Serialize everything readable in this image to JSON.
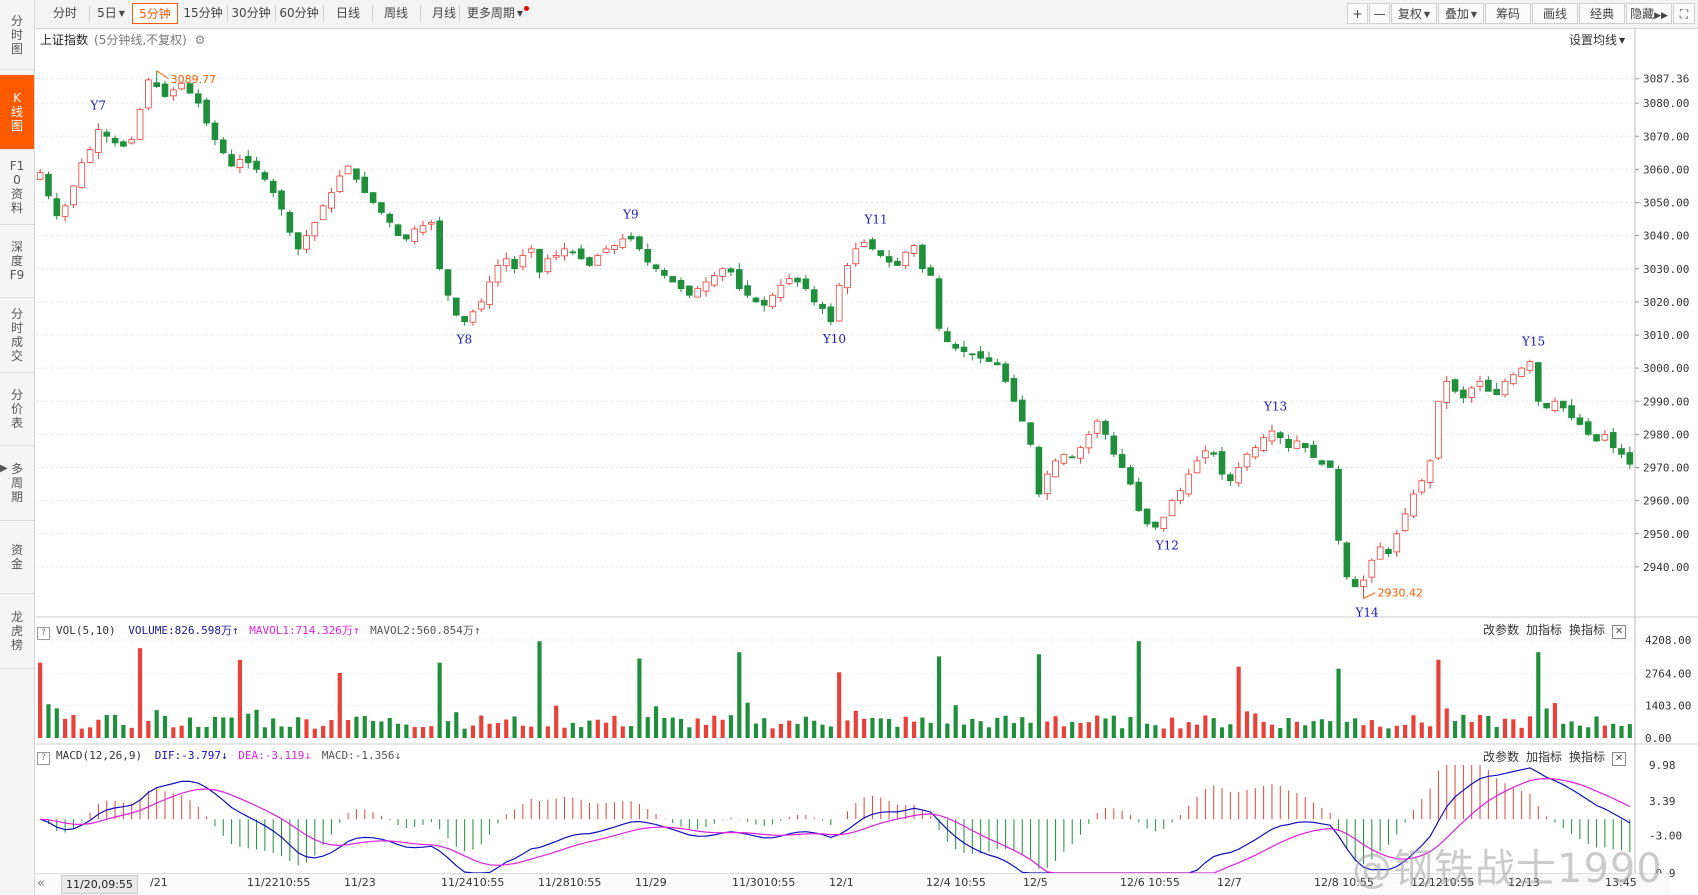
{
  "sidebar": {
    "items": [
      {
        "label": "分时图",
        "active": false
      },
      {
        "label": "K线图",
        "active": true
      },
      {
        "label": "F10资料",
        "active": false
      },
      {
        "label": "深度F9",
        "active": false
      },
      {
        "label": "分时成交",
        "active": false
      },
      {
        "label": "分价表",
        "active": false
      },
      {
        "label": "多周期",
        "active": false
      },
      {
        "label": "资金",
        "active": false
      },
      {
        "label": "龙虎榜",
        "active": false
      }
    ]
  },
  "toolbar": {
    "periods": [
      "分时",
      "5日",
      "5分钟",
      "15分钟",
      "30分钟",
      "60分钟",
      "日线",
      "周线",
      "月线",
      "更多周期"
    ],
    "active_period": "5分钟",
    "right": {
      "plus": "+",
      "minus": "—",
      "fuquan": "复权",
      "diejia": "叠加",
      "chouma": "筹码",
      "huaxian": "画线",
      "jingdian": "经典",
      "hide": "隐藏",
      "fullscreen": "⛶"
    }
  },
  "chart_header": {
    "name": "上证指数",
    "sub": "(5分钟线,不复权)",
    "set_ma": "设置均线"
  },
  "price_axis": [
    "3087.36",
    "3080.00",
    "3070.00",
    "3060.00",
    "3050.00",
    "3040.00",
    "3030.00",
    "3020.00",
    "3010.00",
    "3000.00",
    "2990.00",
    "2980.00",
    "2970.00",
    "2960.00",
    "2950.00",
    "2940.00"
  ],
  "vol_axis": [
    "4208.00",
    "2764.00",
    "1403.00",
    "0.00"
  ],
  "macd_axis": [
    "9.98",
    "3.39",
    "-3.00",
    "-9.9"
  ],
  "vol_panel": {
    "name": "VOL(5,10)",
    "volume_label": "VOLUME:826.598万",
    "mavol1_label": "MAVOL1:714.326万",
    "mavol2_label": "MAVOL2:560.854万"
  },
  "macd_panel": {
    "name": "MACD(12,26,9)",
    "dif_label": "DIF:-3.797",
    "dea_label": "DEA:-3.119",
    "macd_label": "MACD:-1.356"
  },
  "panel_actions": {
    "change": "改参数",
    "add": "加指标",
    "switch": "换指标",
    "close": "✕"
  },
  "annotations": {
    "high_label": "3089.77",
    "low_label": "2930.42",
    "marks": [
      "Y7",
      "Y8",
      "Y9",
      "Y10",
      "Y11",
      "Y12",
      "Y13",
      "Y14",
      "Y15"
    ]
  },
  "x_axis": {
    "nav": "«",
    "current": "11/20,09:55",
    "labels": [
      "/21",
      "11/2210:55",
      "11/23",
      "11/2410:55",
      "11/2810:55",
      "11/29",
      "11/3010:55",
      "12/1",
      "12/4 10:55",
      "12/5",
      "12/6 10:55",
      "12/7",
      "12/8 10:55",
      "12/1210:55",
      "12/13",
      "13:45"
    ]
  },
  "watermark": "@钢铁战士1990",
  "colors": {
    "up": "#e8413a",
    "down": "#1f8f3c",
    "ma1": "#e020e0",
    "ma2": "#555555",
    "dif": "#1010c0",
    "dea": "#e020e0",
    "accent": "#ff5a00",
    "mark": "#1818c0",
    "extreme": "#ff5a00"
  },
  "chart_data": {
    "type": "candlestick",
    "title": "上证指数",
    "period": "5分钟",
    "ylim": [
      2930,
      3090
    ],
    "high": 3089.77,
    "low": 2930.42,
    "closes_by_session": [
      {
        "date": "11/20",
        "closes": [
          3059,
          3052,
          3046,
          3049,
          3055,
          3062,
          3066,
          3072,
          3070,
          3068,
          3067,
          3069
        ]
      },
      {
        "date": "11/21",
        "closes": [
          3078,
          3087,
          3085,
          3082,
          3084,
          3086,
          3083,
          3080,
          3074,
          3069,
          3065,
          3061
        ]
      },
      {
        "date": "11/22",
        "closes": [
          3063,
          3062,
          3060,
          3057,
          3053,
          3048,
          3041,
          3036,
          3040,
          3044,
          3049,
          3053
        ]
      },
      {
        "date": "11/23",
        "closes": [
          3058,
          3061,
          3057,
          3053,
          3050,
          3047,
          3044,
          3040,
          3039,
          3042,
          3043,
          3044
        ]
      },
      {
        "date": "11/24",
        "closes": [
          3030,
          3022,
          3016,
          3014,
          3017,
          3020,
          3026,
          3031,
          3033,
          3030,
          3034,
          3036
        ]
      },
      {
        "date": "11/28",
        "closes": [
          3029,
          3033,
          3034,
          3036,
          3035,
          3033,
          3031,
          3034,
          3036,
          3037,
          3039,
          3039
        ]
      },
      {
        "date": "11/29",
        "closes": [
          3036,
          3032,
          3030,
          3028,
          3026,
          3024,
          3022,
          3024,
          3026,
          3028,
          3030,
          3029
        ]
      },
      {
        "date": "11/30",
        "closes": [
          3024,
          3022,
          3020,
          3019,
          3022,
          3025,
          3027,
          3026,
          3024,
          3020,
          3018,
          3014
        ]
      },
      {
        "date": "12/1",
        "closes": [
          3025,
          3031,
          3036,
          3038,
          3036,
          3034,
          3032,
          3031,
          3035,
          3037,
          3030,
          3028
        ]
      },
      {
        "date": "12/4",
        "closes": [
          3012,
          3008,
          3006,
          3005,
          3004,
          3003,
          3002,
          3001,
          2996,
          2990,
          2984,
          2977
        ]
      },
      {
        "date": "12/5",
        "closes": [
          2962,
          2968,
          2972,
          2974,
          2973,
          2976,
          2980,
          2984,
          2980,
          2974,
          2970,
          2965
        ]
      },
      {
        "date": "12/6",
        "closes": [
          2957,
          2953,
          2952,
          2955,
          2960,
          2963,
          2968,
          2972,
          2975,
          2974,
          2968,
          2966
        ]
      },
      {
        "date": "12/7",
        "closes": [
          2970,
          2974,
          2976,
          2979,
          2981,
          2979,
          2976,
          2978,
          2976,
          2973,
          2971,
          2970
        ]
      },
      {
        "date": "12/8",
        "closes": [
          2948,
          2937,
          2934,
          2936,
          2942,
          2946,
          2944,
          2950,
          2956,
          2962,
          2966,
          2972
        ]
      },
      {
        "date": "12/12",
        "closes": [
          2990,
          2996,
          2993,
          2991,
          2994,
          2996,
          2993,
          2992,
          2996,
          2998,
          3000,
          3002
        ]
      },
      {
        "date": "12/13",
        "closes": [
          2990,
          2988,
          2990,
          2988,
          2985,
          2983,
          2980,
          2978,
          2980,
          2976,
          2974,
          2971
        ]
      }
    ],
    "volume_ylim": [
      0,
      4208
    ],
    "macd_ylim": [
      -9.9,
      9.98
    ]
  }
}
